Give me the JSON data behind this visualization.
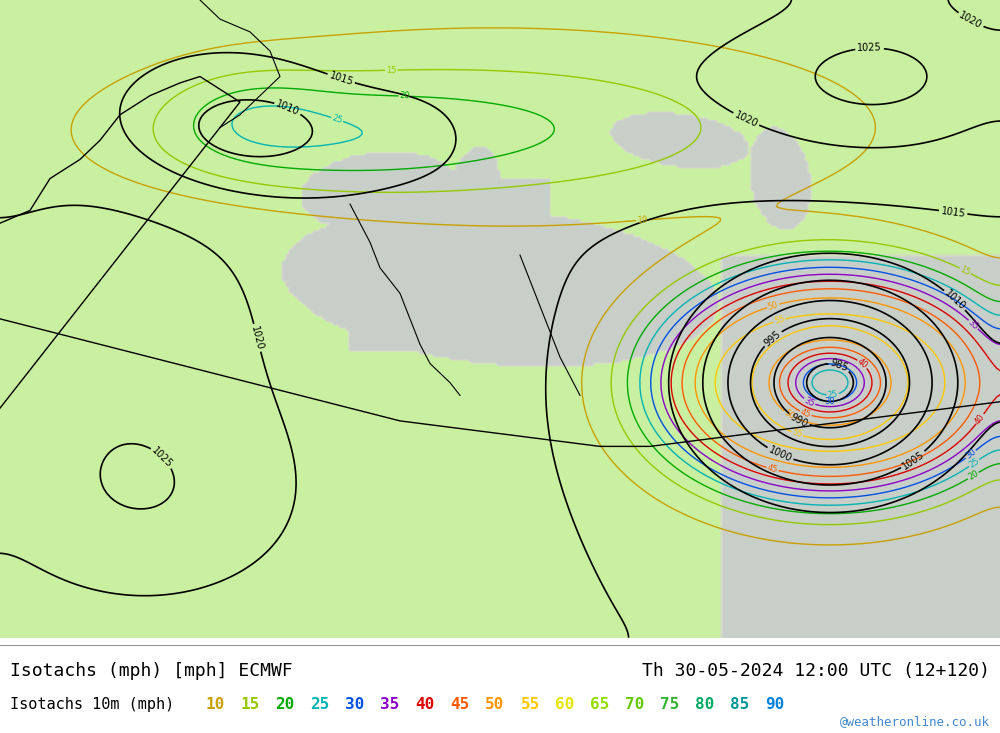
{
  "title_left": "Isotachs (mph) [mph] ECMWF",
  "title_right": "Th 30-05-2024 12:00 UTC (12+120)",
  "legend_title": "Isotachs 10m (mph)",
  "legend_values": [
    10,
    15,
    20,
    25,
    30,
    35,
    40,
    45,
    50,
    55,
    60,
    65,
    70,
    75,
    80,
    85,
    90
  ],
  "legend_colors": [
    "#c8a000",
    "#96c800",
    "#00aa00",
    "#00b4b4",
    "#0050e6",
    "#8c00c8",
    "#dc0000",
    "#ff5a00",
    "#ff9600",
    "#ffc800",
    "#e6e600",
    "#96dc00",
    "#64c800",
    "#32b432",
    "#00aa64",
    "#009696",
    "#0082dc"
  ],
  "watermark": "@weatheronline.co.uk",
  "bg_color": "#ffffff",
  "map_bg_green": "#c8f0a0",
  "map_bg_gray": "#c8c8d0",
  "fig_width": 10.0,
  "fig_height": 7.33,
  "dpi": 100,
  "title_fontsize": 13,
  "legend_fontsize": 11.5,
  "watermark_color": "#4488cc"
}
